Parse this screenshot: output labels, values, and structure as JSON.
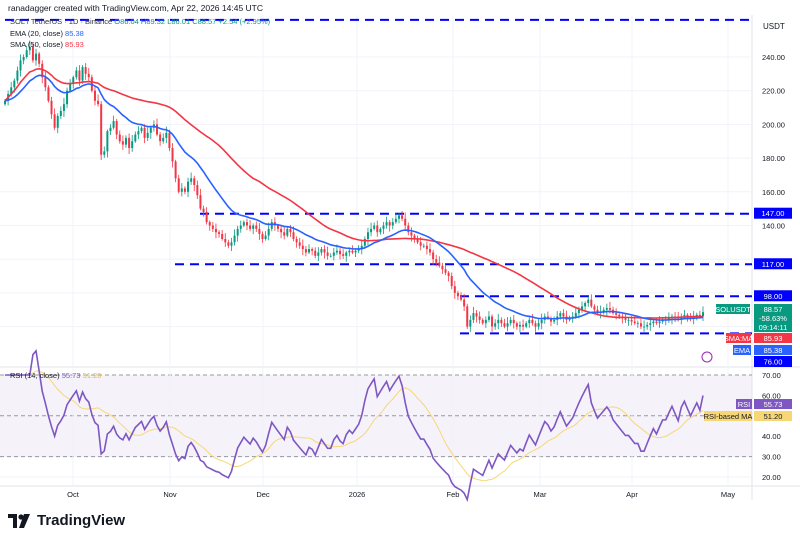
{
  "caption": "ranadagger created with TradingView.com, Apr 22, 2026 14:45 UTC",
  "header": {
    "symbol": "SOL / TetherUS · 1D · Binance",
    "ohlc": "O86.04 H89.32 L86.01 C88.57 +2.54 (+2.95%)"
  },
  "indicators": [
    {
      "label": "EMA (20, close)",
      "value": "85.38",
      "color": "#2962ff"
    },
    {
      "label": "SMA (50, close)",
      "value": "85.93",
      "color": "#f23645"
    }
  ],
  "rsi_legend": {
    "label": "RSI (14, close)",
    "value": "55.73",
    "ma_value": "51.20"
  },
  "price_axis": {
    "currency": "USDT",
    "ticks": [
      "240.00",
      "220.00",
      "200.00",
      "180.00",
      "160.00",
      "140.00"
    ]
  },
  "rsi_axis": {
    "ticks": [
      "70.00",
      "60.00",
      "40.00",
      "30.00",
      "20.00"
    ]
  },
  "time_axis": [
    "Oct",
    "Nov",
    "Dec",
    "2026",
    "Feb",
    "Mar",
    "Apr",
    "May"
  ],
  "badges": {
    "symbol": "SOLUSDT",
    "price": "88.57",
    "change": "-58.63%",
    "countdown": "09:14:11",
    "sma_label": "SMA:MA",
    "sma_value": "85.93",
    "ema_label": "EMA",
    "ema_value": "85.38",
    "rsi_label": "RSI",
    "rsi_value": "55.73",
    "rsi_ma_label": "RSI-based MA",
    "rsi_ma_value": "51.20"
  },
  "levels": [
    {
      "price": 262,
      "label": ""
    },
    {
      "price": 147,
      "label": "147.00"
    },
    {
      "price": 117,
      "label": "117.00"
    },
    {
      "price": 98,
      "label": "98.00"
    },
    {
      "price": 76,
      "label": "76.00"
    }
  ],
  "brand": "TradingView",
  "colors": {
    "up": "#089981",
    "down": "#f23645",
    "level": "#0000ff",
    "rsi": "#7e57c2",
    "rsi_ma": "#f7d775",
    "ema": "#2962ff",
    "sma": "#f23645"
  },
  "chart_data": {
    "type": "candlestick",
    "start_date": "2025-09-09",
    "interval": "1D",
    "ylim": [
      62,
      262
    ],
    "closes": [
      214,
      218,
      222,
      226,
      232,
      238,
      240,
      244,
      246,
      238,
      242,
      236,
      228,
      222,
      214,
      206,
      198,
      205,
      208,
      212,
      220,
      224,
      228,
      232,
      226,
      234,
      230,
      228,
      220,
      214,
      212,
      182,
      184,
      196,
      198,
      202,
      194,
      190,
      188,
      192,
      186,
      190,
      194,
      196,
      198,
      192,
      195,
      198,
      200,
      194,
      190,
      192,
      195,
      186,
      178,
      168,
      160,
      162,
      160,
      166,
      168,
      164,
      158,
      150,
      148,
      142,
      140,
      138,
      136,
      135,
      132,
      130,
      128,
      130,
      134,
      138,
      140,
      142,
      140,
      138,
      140,
      138,
      135,
      132,
      134,
      138,
      142,
      140,
      138,
      136,
      134,
      138,
      136,
      132,
      130,
      128,
      126,
      124,
      126,
      125,
      122,
      124,
      126,
      124,
      122,
      122,
      124,
      125,
      123,
      122,
      124,
      125,
      124,
      125,
      126,
      128,
      132,
      136,
      138,
      140,
      136,
      138,
      140,
      142,
      140,
      142,
      144,
      146,
      144,
      140,
      136,
      134,
      132,
      130,
      128,
      128,
      126,
      124,
      120,
      118,
      116,
      114,
      112,
      110,
      104,
      100,
      98,
      96,
      92,
      80,
      84,
      88,
      86,
      84,
      82,
      84,
      86,
      80,
      82,
      84,
      82,
      80,
      82,
      84,
      82,
      80,
      81,
      80,
      82,
      84,
      82,
      80,
      82,
      84,
      86,
      85,
      83,
      84,
      86,
      88,
      86,
      84,
      85,
      86,
      88,
      90,
      92,
      94,
      96,
      92,
      90,
      88,
      89,
      90,
      91,
      90,
      88,
      87,
      86,
      85,
      84,
      84,
      83,
      82,
      82,
      80,
      80,
      81,
      82,
      83,
      82,
      83,
      84,
      84,
      85,
      86,
      85,
      84,
      86,
      87,
      86,
      85,
      86,
      87,
      86.04,
      88.57
    ]
  }
}
